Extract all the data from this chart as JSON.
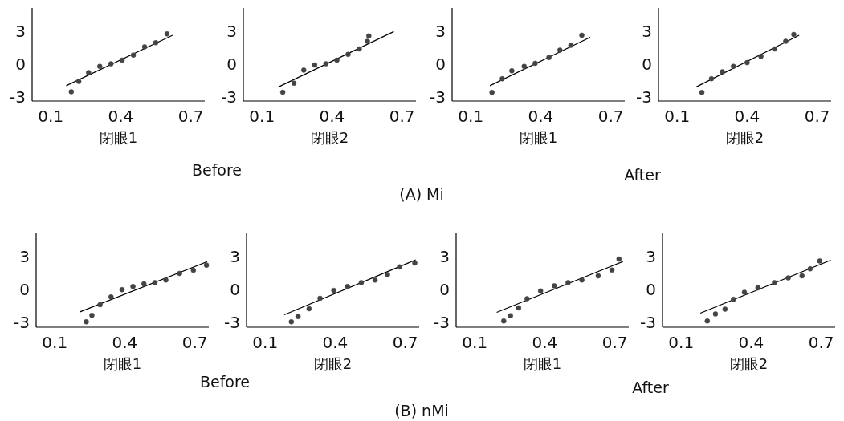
{
  "chart_data": [
    {
      "type": "scatter",
      "xlabel": "閉眼1",
      "xlim": [
        0.02,
        0.76
      ],
      "ylim": [
        -3.4,
        5.1
      ],
      "xticks": [
        0.1,
        0.4,
        0.7
      ],
      "yticks": [
        -3,
        0,
        3
      ],
      "annotations": [
        "Before",
        "(A) Mi"
      ],
      "series": [
        {
          "type": "scatter",
          "color": "#444444",
          "marker": "circle",
          "x": [
            0.188,
            0.22,
            0.262,
            0.31,
            0.358,
            0.406,
            0.454,
            0.502,
            0.55,
            0.598
          ],
          "values": [
            -2.55,
            -1.6,
            -0.8,
            -0.23,
            0,
            0.34,
            0.8,
            1.55,
            1.93,
            2.73
          ]
        },
        {
          "type": "line",
          "color": "#000000",
          "x": [
            0.166,
            0.622
          ],
          "values": [
            -2.0,
            2.61
          ]
        }
      ]
    },
    {
      "type": "scatter",
      "xlabel": "閉眼2",
      "xlim": [
        0.02,
        0.76
      ],
      "ylim": [
        -3.4,
        5.1
      ],
      "xticks": [
        0.1,
        0.4,
        0.7
      ],
      "yticks": [
        -3,
        0,
        3
      ],
      "series": [
        {
          "type": "scatter",
          "color": "#444444",
          "marker": "circle",
          "x": [
            0.189,
            0.237,
            0.279,
            0.326,
            0.374,
            0.421,
            0.469,
            0.517,
            0.552,
            0.558
          ],
          "values": [
            -2.6,
            -1.77,
            -0.57,
            -0.11,
            0,
            0.34,
            0.86,
            1.36,
            2.05,
            2.55
          ]
        },
        {
          "type": "line",
          "color": "#000000",
          "x": [
            0.171,
            0.665
          ],
          "values": [
            -2.11,
            2.95
          ]
        }
      ]
    },
    {
      "type": "scatter",
      "xlabel": "閉眼1",
      "xlim": [
        0.02,
        0.76
      ],
      "ylim": [
        -3.4,
        5.1
      ],
      "xticks": [
        0.1,
        0.4,
        0.7
      ],
      "yticks": [
        -3,
        0,
        3
      ],
      "annotations": [
        "After"
      ],
      "series": [
        {
          "type": "scatter",
          "color": "#444444",
          "marker": "circle",
          "x": [
            0.191,
            0.235,
            0.276,
            0.329,
            0.376,
            0.435,
            0.482,
            0.529,
            0.576
          ],
          "values": [
            -2.61,
            -1.36,
            -0.64,
            -0.23,
            0.05,
            0.57,
            1.25,
            1.7,
            2.61
          ]
        },
        {
          "type": "line",
          "color": "#000000",
          "x": [
            0.182,
            0.612
          ],
          "values": [
            -2.0,
            2.43
          ]
        }
      ]
    },
    {
      "type": "scatter",
      "xlabel": "閉眼2",
      "xlim": [
        0.02,
        0.76
      ],
      "ylim": [
        -3.4,
        5.1
      ],
      "xticks": [
        0.1,
        0.4,
        0.7
      ],
      "yticks": [
        -3,
        0,
        3
      ],
      "series": [
        {
          "type": "scatter",
          "color": "#444444",
          "marker": "circle",
          "x": [
            0.206,
            0.247,
            0.294,
            0.341,
            0.4,
            0.459,
            0.518,
            0.565,
            0.6
          ],
          "values": [
            -2.61,
            -1.36,
            -0.73,
            -0.23,
            0.11,
            0.68,
            1.36,
            2.05,
            2.68
          ]
        },
        {
          "type": "line",
          "color": "#000000",
          "x": [
            0.182,
            0.623
          ],
          "values": [
            -2.11,
            2.61
          ]
        }
      ]
    },
    {
      "type": "scatter",
      "xlabel": "閉眼1",
      "xlim": [
        0.02,
        0.76
      ],
      "ylim": [
        -3.4,
        5.1
      ],
      "xticks": [
        0.1,
        0.4,
        0.7
      ],
      "yticks": [
        -3,
        0,
        3
      ],
      "annotations": [
        "Before",
        "(B) nMi"
      ],
      "series": [
        {
          "type": "scatter",
          "color": "#444444",
          "marker": "circle",
          "x": [
            0.235,
            0.259,
            0.294,
            0.341,
            0.388,
            0.435,
            0.482,
            0.529,
            0.576,
            0.635,
            0.694,
            0.75
          ],
          "values": [
            -2.91,
            -2.32,
            -1.37,
            -0.66,
            0,
            0.28,
            0.52,
            0.64,
            0.87,
            1.47,
            1.75,
            2.22
          ]
        },
        {
          "type": "line",
          "color": "#000000",
          "x": [
            0.206,
            0.753
          ],
          "values": [
            -2.03,
            2.53
          ]
        }
      ]
    },
    {
      "type": "scatter",
      "xlabel": "閉眼2",
      "xlim": [
        0.02,
        0.76
      ],
      "ylim": [
        -3.4,
        5.1
      ],
      "xticks": [
        0.1,
        0.4,
        0.7
      ],
      "yticks": [
        -3,
        0,
        3
      ],
      "series": [
        {
          "type": "scatter",
          "color": "#444444",
          "marker": "circle",
          "x": [
            0.212,
            0.241,
            0.288,
            0.335,
            0.394,
            0.453,
            0.512,
            0.571,
            0.624,
            0.676,
            0.741
          ],
          "values": [
            -2.91,
            -2.43,
            -1.73,
            -0.78,
            -0.07,
            0.28,
            0.64,
            0.87,
            1.35,
            2.06,
            2.41
          ]
        },
        {
          "type": "line",
          "color": "#000000",
          "x": [
            0.182,
            0.745
          ],
          "values": [
            -2.27,
            2.7
          ]
        }
      ]
    },
    {
      "type": "scatter",
      "xlabel": "閉眼1",
      "xlim": [
        0.02,
        0.76
      ],
      "ylim": [
        -3.4,
        5.1
      ],
      "xticks": [
        0.1,
        0.4,
        0.7
      ],
      "yticks": [
        -3,
        0,
        3
      ],
      "annotations": [
        "After"
      ],
      "series": [
        {
          "type": "scatter",
          "color": "#444444",
          "marker": "circle",
          "x": [
            0.224,
            0.253,
            0.288,
            0.324,
            0.382,
            0.441,
            0.5,
            0.559,
            0.629,
            0.688,
            0.718
          ],
          "values": [
            -2.84,
            -2.36,
            -1.65,
            -0.83,
            -0.12,
            0.35,
            0.64,
            0.87,
            1.25,
            1.77,
            2.77
          ]
        },
        {
          "type": "line",
          "color": "#000000",
          "x": [
            0.194,
            0.735
          ],
          "values": [
            -2.06,
            2.55
          ]
        }
      ]
    },
    {
      "type": "scatter",
      "xlabel": "閉眼2",
      "xlim": [
        0.02,
        0.76
      ],
      "ylim": [
        -3.4,
        5.1
      ],
      "xticks": [
        0.1,
        0.4,
        0.7
      ],
      "yticks": [
        -3,
        0,
        3
      ],
      "series": [
        {
          "type": "scatter",
          "color": "#444444",
          "marker": "circle",
          "x": [
            0.212,
            0.247,
            0.288,
            0.324,
            0.371,
            0.429,
            0.5,
            0.559,
            0.618,
            0.653,
            0.694
          ],
          "values": [
            -2.84,
            -2.2,
            -1.77,
            -0.87,
            -0.24,
            0.17,
            0.64,
            1.06,
            1.25,
            1.89,
            2.6
          ]
        },
        {
          "type": "line",
          "color": "#000000",
          "x": [
            0.182,
            0.741
          ],
          "values": [
            -2.13,
            2.67
          ]
        }
      ]
    }
  ]
}
